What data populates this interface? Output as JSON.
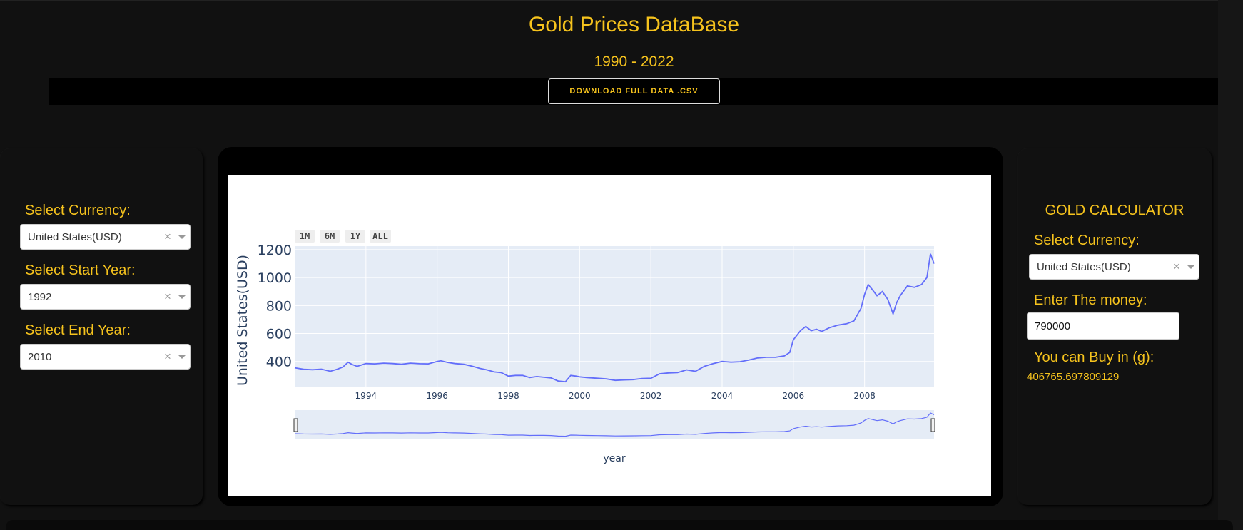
{
  "header": {
    "title": "Gold Prices DataBase",
    "subtitle": "1990 - 2022",
    "download_label": "DOWNLOAD FULL DATA .CSV"
  },
  "filters": {
    "currency_label": "Select Currency:",
    "currency_value": "United States(USD)",
    "start_label": "Select Start Year:",
    "start_value": "1992",
    "end_label": "Select End Year:",
    "end_value": "2010",
    "clear_glyph": "×"
  },
  "calculator": {
    "title": "GOLD CALCULATOR",
    "currency_label": "Select Currency:",
    "currency_value": "United States(USD)",
    "money_label": "Enter The money:",
    "money_value": "790000",
    "result_label": "You can Buy in (g):",
    "result_value": "406765.697809129"
  },
  "chart_data": {
    "type": "line",
    "xlabel": "year",
    "ylabel": "United States(USD)",
    "xlim": [
      1992.0,
      2009.95
    ],
    "ylim": [
      215,
      1225
    ],
    "y_ticks": [
      400,
      600,
      800,
      1000,
      1200
    ],
    "y_tick_labels": [
      "400",
      "600",
      "800",
      "1000",
      "1200"
    ],
    "x_ticks": [
      1994,
      1996,
      1998,
      2000,
      2002,
      2004,
      2006,
      2008
    ],
    "x_tick_labels": [
      "1994",
      "1996",
      "1998",
      "2000",
      "2002",
      "2004",
      "2006",
      "2008"
    ],
    "range_buttons": [
      "1M",
      "6M",
      "1Y",
      "ALL"
    ],
    "grid": true,
    "line_color": "#636efa",
    "plot_bg": "#e5ecf6",
    "x": [
      1992.0,
      1992.25,
      1992.5,
      1992.75,
      1993.0,
      1993.2,
      1993.35,
      1993.5,
      1993.6,
      1993.75,
      1994.0,
      1994.25,
      1994.5,
      1994.75,
      1995.0,
      1995.25,
      1995.5,
      1995.75,
      1996.0,
      1996.1,
      1996.3,
      1996.5,
      1996.75,
      1997.0,
      1997.2,
      1997.4,
      1997.6,
      1997.8,
      1998.0,
      1998.2,
      1998.4,
      1998.6,
      1998.8,
      1999.0,
      1999.2,
      1999.4,
      1999.6,
      1999.75,
      1999.9,
      2000.0,
      2000.2,
      2000.5,
      2000.75,
      2001.0,
      2001.25,
      2001.5,
      2001.75,
      2002.0,
      2002.25,
      2002.5,
      2002.75,
      2003.0,
      2003.25,
      2003.5,
      2003.75,
      2004.0,
      2004.25,
      2004.5,
      2004.75,
      2005.0,
      2005.25,
      2005.5,
      2005.75,
      2005.9,
      2006.0,
      2006.2,
      2006.35,
      2006.5,
      2006.65,
      2006.8,
      2007.0,
      2007.25,
      2007.5,
      2007.7,
      2007.9,
      2008.0,
      2008.1,
      2008.2,
      2008.35,
      2008.5,
      2008.65,
      2008.8,
      2008.9,
      2009.0,
      2009.2,
      2009.4,
      2009.6,
      2009.75,
      2009.85,
      2009.95
    ],
    "y": [
      355,
      344,
      341,
      345,
      330,
      345,
      360,
      395,
      380,
      365,
      385,
      383,
      388,
      385,
      380,
      388,
      384,
      383,
      400,
      405,
      393,
      385,
      380,
      365,
      350,
      340,
      325,
      320,
      295,
      300,
      300,
      285,
      292,
      287,
      282,
      260,
      255,
      300,
      295,
      290,
      285,
      280,
      275,
      265,
      268,
      270,
      278,
      280,
      312,
      318,
      320,
      340,
      330,
      365,
      385,
      400,
      395,
      398,
      410,
      425,
      430,
      430,
      440,
      465,
      555,
      620,
      650,
      620,
      630,
      615,
      640,
      660,
      670,
      690,
      780,
      880,
      950,
      920,
      870,
      900,
      845,
      740,
      820,
      870,
      940,
      930,
      950,
      1000,
      1170,
      1100
    ]
  }
}
